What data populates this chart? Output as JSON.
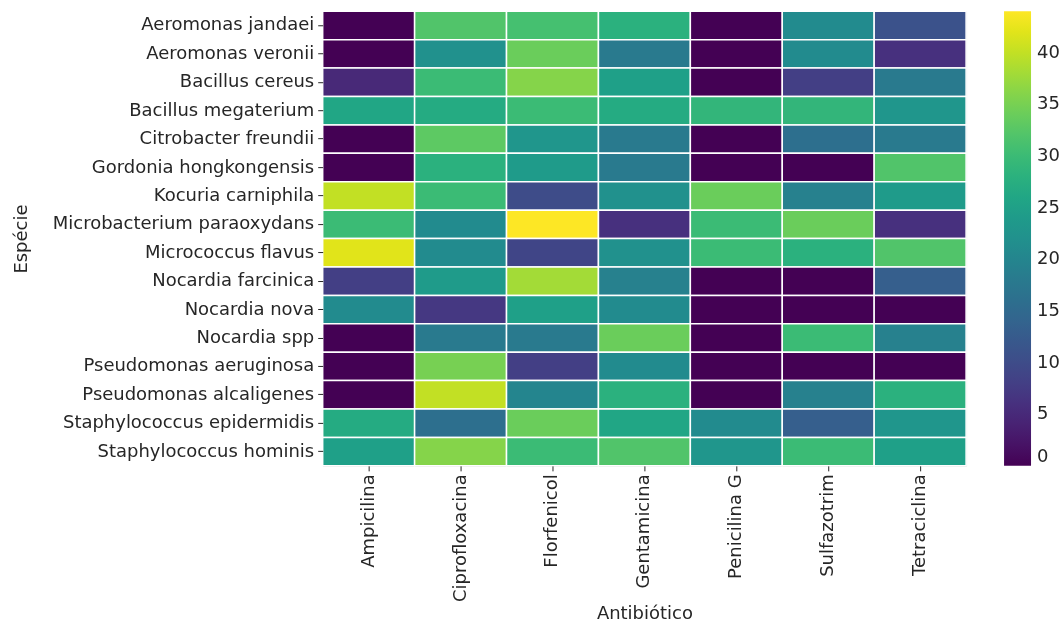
{
  "chart_data": {
    "type": "heatmap",
    "xlabel": "Antibiótico",
    "ylabel": "Espécie",
    "categories": [
      "Ampicilina",
      "Ciprofloxacina",
      "Florfenicol",
      "Gentamicina",
      "Penicilina G",
      "Sulfazotrim",
      "Tetraciclina"
    ],
    "y_categories": [
      "Aeromonas jandaei",
      "Aeromonas veronii",
      "Bacillus cereus",
      "Bacillus megaterium",
      "Citrobacter freundii",
      "Gordonia hongkongensis",
      "Kocuria carniphila",
      "Microbacterium paraoxydans",
      "Micrococcus flavus",
      "Nocardia farcinica",
      "Nocardia nova",
      "Nocardia spp",
      "Pseudomonas aeruginosa",
      "Pseudomonas alcaligenes",
      "Staphylococcus epidermidis",
      "Staphylococcus hominis"
    ],
    "cells": [
      [
        0,
        32,
        31,
        28,
        0,
        21,
        11
      ],
      [
        0,
        22,
        34,
        18,
        0,
        21,
        6
      ],
      [
        5,
        30,
        36,
        25,
        0,
        8,
        18
      ],
      [
        26,
        27,
        30,
        27,
        29,
        29,
        23
      ],
      [
        0,
        33,
        23,
        18,
        0,
        16,
        18
      ],
      [
        0,
        28,
        24,
        18,
        0,
        0,
        32
      ],
      [
        40,
        30,
        10,
        22,
        34,
        19,
        24
      ],
      [
        30,
        21,
        44,
        6,
        30,
        34,
        6
      ],
      [
        42,
        21,
        9,
        22,
        30,
        28,
        32
      ],
      [
        8,
        24,
        38,
        19,
        0,
        0,
        13
      ],
      [
        21,
        7,
        25,
        21,
        0,
        0,
        0
      ],
      [
        0,
        18,
        18,
        34,
        0,
        30,
        19
      ],
      [
        0,
        35,
        8,
        21,
        0,
        0,
        0
      ],
      [
        0,
        40,
        20,
        28,
        0,
        19,
        28
      ],
      [
        27,
        16,
        34,
        26,
        21,
        13,
        23
      ],
      [
        25,
        36,
        30,
        32,
        23,
        30,
        25
      ]
    ],
    "clim": [
      0,
      44
    ],
    "cticks": [
      0,
      5,
      10,
      15,
      20,
      25,
      30,
      35,
      40
    ]
  }
}
